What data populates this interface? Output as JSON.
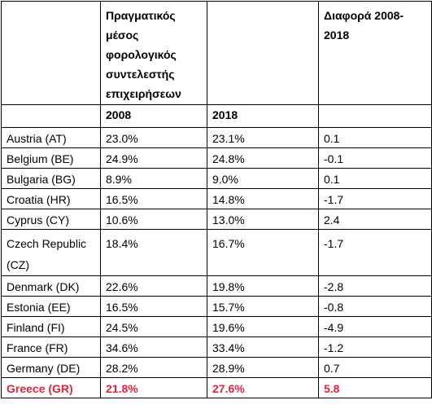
{
  "header": {
    "country": "",
    "col_2008_label": "Πραγματικός μέσος φορολογικός συντελεστής επιχειρήσεων",
    "col_2018_label": "",
    "diff_label": "Διαφορά 2008-2018"
  },
  "years": {
    "country": "",
    "y2008": "2008",
    "y2018": "2018",
    "diff": ""
  },
  "rows": [
    {
      "country": "Austria (AT)",
      "v2008": "23.0%",
      "v2018": "23.1%",
      "diff": "0.1"
    },
    {
      "country": "Belgium (BE)",
      "v2008": "24.9%",
      "v2018": "24.8%",
      "diff": "-0.1"
    },
    {
      "country": "Bulgaria (BG)",
      "v2008": "8.9%",
      "v2018": "9.0%",
      "diff": "0.1"
    },
    {
      "country": "Croatia (HR)",
      "v2008": "16.5%",
      "v2018": "14.8%",
      "diff": "-1.7"
    },
    {
      "country": "Cyprus (CY)",
      "v2008": "10.6%",
      "v2018": "13.0%",
      "diff": "2.4"
    },
    {
      "country": "Czech Republic (CZ)",
      "v2008": "18.4%",
      "v2018": "16.7%",
      "diff": "-1.7"
    },
    {
      "country": "Denmark (DK)",
      "v2008": "22.6%",
      "v2018": "19.8%",
      "diff": "-2.8"
    },
    {
      "country": "Estonia (EE)",
      "v2008": "16.5%",
      "v2018": "15.7%",
      "diff": "-0.8"
    },
    {
      "country": "Finland (FI)",
      "v2008": "24.5%",
      "v2018": "19.6%",
      "diff": "-4.9"
    },
    {
      "country": "France (FR)",
      "v2008": "34.6%",
      "v2018": "33.4%",
      "diff": "-1.2"
    },
    {
      "country": "Germany (DE)",
      "v2008": "28.2%",
      "v2018": "28.9%",
      "diff": "0.7"
    },
    {
      "country": "Greece (GR)",
      "v2008": "21.8%",
      "v2018": "27.6%",
      "diff": "5.8"
    }
  ],
  "highlight_color": "#e8213a"
}
